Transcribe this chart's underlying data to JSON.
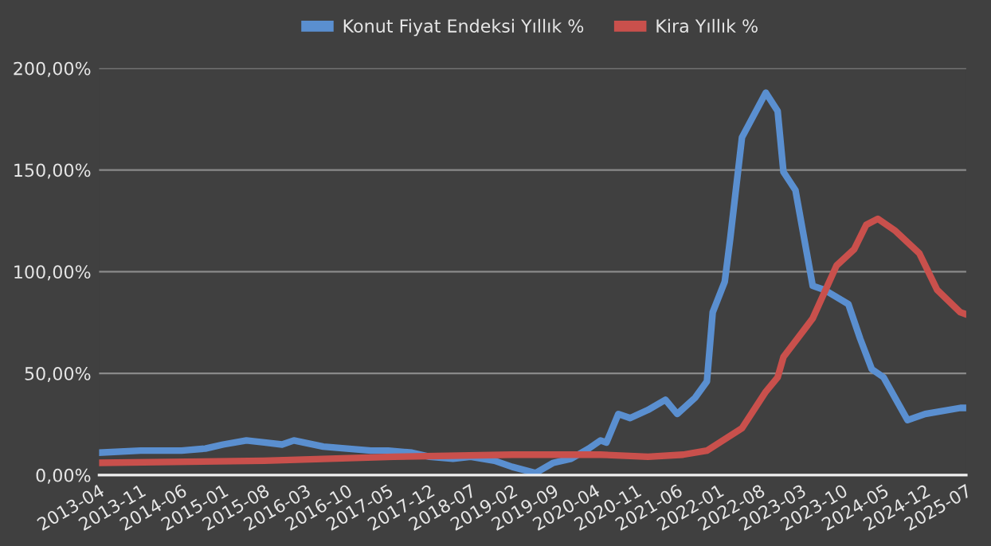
{
  "chart_data": {
    "type": "line",
    "series": [
      {
        "name": "Konut Fiyat Endeksi Yıllık %",
        "color": "#5a8fd0",
        "x": [
          "2013-04",
          "2013-11",
          "2014-06",
          "2014-10",
          "2015-01",
          "2015-05",
          "2015-08",
          "2015-11",
          "2016-01",
          "2016-06",
          "2016-10",
          "2017-02",
          "2017-05",
          "2017-09",
          "2017-12",
          "2018-04",
          "2018-07",
          "2018-11",
          "2019-02",
          "2019-06",
          "2019-09",
          "2019-12",
          "2020-03",
          "2020-05",
          "2020-06",
          "2020-08",
          "2020-10",
          "2021-01",
          "2021-04",
          "2021-06",
          "2021-09",
          "2021-11",
          "2021-12",
          "2022-02",
          "2022-03",
          "2022-05",
          "2022-09",
          "2022-11",
          "2022-12",
          "2023-02",
          "2023-05",
          "2023-07",
          "2023-11",
          "2024-01",
          "2024-03",
          "2024-05",
          "2024-09",
          "2024-12",
          "2025-06",
          "2025-07"
        ],
        "values": [
          11,
          12,
          12,
          13,
          15,
          17,
          16,
          15,
          17,
          14,
          13,
          12,
          12,
          11,
          9,
          8,
          9,
          7,
          4,
          1,
          6,
          8,
          13,
          17,
          16,
          30,
          28,
          32,
          37,
          30,
          38,
          46,
          80,
          95,
          116,
          166,
          188,
          179,
          149,
          140,
          93,
          91,
          84,
          67,
          52,
          48,
          27,
          30,
          33,
          33
        ]
      },
      {
        "name": "Kira Yıllık %",
        "color": "#c9504c",
        "x": [
          "2013-04",
          "2015-08",
          "2017-06",
          "2019-02",
          "2020-05",
          "2021-01",
          "2021-07",
          "2021-11",
          "2022-05",
          "2022-09",
          "2022-11",
          "2022-12",
          "2023-05",
          "2023-09",
          "2023-12",
          "2024-02",
          "2024-04",
          "2024-07",
          "2024-11",
          "2025-02",
          "2025-06",
          "2025-07"
        ],
        "values": [
          6,
          7,
          9,
          10,
          10,
          9,
          10,
          12,
          23,
          41,
          48,
          58,
          77,
          103,
          111,
          123,
          126,
          120,
          109,
          91,
          80,
          79
        ]
      }
    ],
    "xlim": [
      "2013-04",
      "2025-07"
    ],
    "xticks": [
      "2013-04",
      "2013-11",
      "2014-06",
      "2015-01",
      "2015-08",
      "2016-03",
      "2016-10",
      "2017-05",
      "2017-12",
      "2018-07",
      "2019-02",
      "2019-09",
      "2020-04",
      "2020-11",
      "2021-06",
      "2022-01",
      "2022-08",
      "2023-03",
      "2023-10",
      "2024-05",
      "2024-12",
      "2025-07"
    ],
    "ylim": [
      0,
      200
    ],
    "yticks": [
      {
        "value": 0,
        "label": "0,00%"
      },
      {
        "value": 50,
        "label": "50,00%"
      },
      {
        "value": 100,
        "label": "100,00%"
      },
      {
        "value": 150,
        "label": "150,00%"
      },
      {
        "value": 200,
        "label": "200,00%"
      }
    ],
    "grid": "y",
    "legend": "top",
    "line_style": "solid",
    "marker": "none"
  }
}
